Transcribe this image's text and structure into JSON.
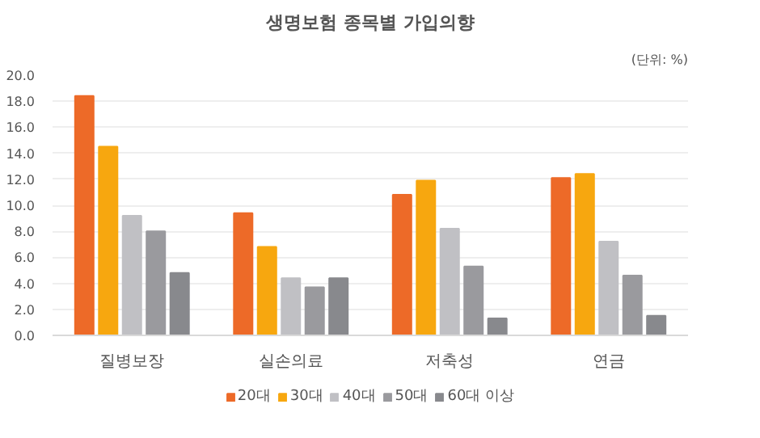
{
  "chart_data": {
    "type": "bar",
    "title": "생명보험 종목별 가입의향",
    "annotations": [
      "(단위: %)"
    ],
    "categories": [
      "질병보장",
      "실손의료",
      "저축성",
      "연금"
    ],
    "series": [
      {
        "name": "20대",
        "color": "#ed6a28",
        "values": [
          18.4,
          9.4,
          10.8,
          12.1
        ]
      },
      {
        "name": "30대",
        "color": "#f7a70f",
        "values": [
          14.5,
          6.8,
          11.9,
          12.4
        ]
      },
      {
        "name": "40대",
        "color": "#c0c0c4",
        "values": [
          9.2,
          4.4,
          8.2,
          7.2
        ]
      },
      {
        "name": "50대",
        "color": "#9a9a9e",
        "values": [
          8.0,
          3.7,
          5.3,
          4.6
        ]
      },
      {
        "name": "60대 이상",
        "color": "#88898d",
        "values": [
          4.8,
          4.4,
          1.3,
          1.5
        ]
      }
    ],
    "ylim": [
      0,
      20
    ],
    "yticks": [
      {
        "value": 0,
        "label": "0.0"
      },
      {
        "value": 2,
        "label": "2.0"
      },
      {
        "value": 4,
        "label": "4.0"
      },
      {
        "value": 6,
        "label": "6.0"
      },
      {
        "value": 8,
        "label": "8.0"
      },
      {
        "value": 10,
        "label": "10.0"
      },
      {
        "value": 12,
        "label": "12.0"
      },
      {
        "value": 14,
        "label": "14.0"
      },
      {
        "value": 16,
        "label": "16.0"
      },
      {
        "value": 18,
        "label": "18.0"
      },
      {
        "value": 20,
        "label": "20.0"
      }
    ],
    "grid": "y",
    "legend": "bottom"
  }
}
